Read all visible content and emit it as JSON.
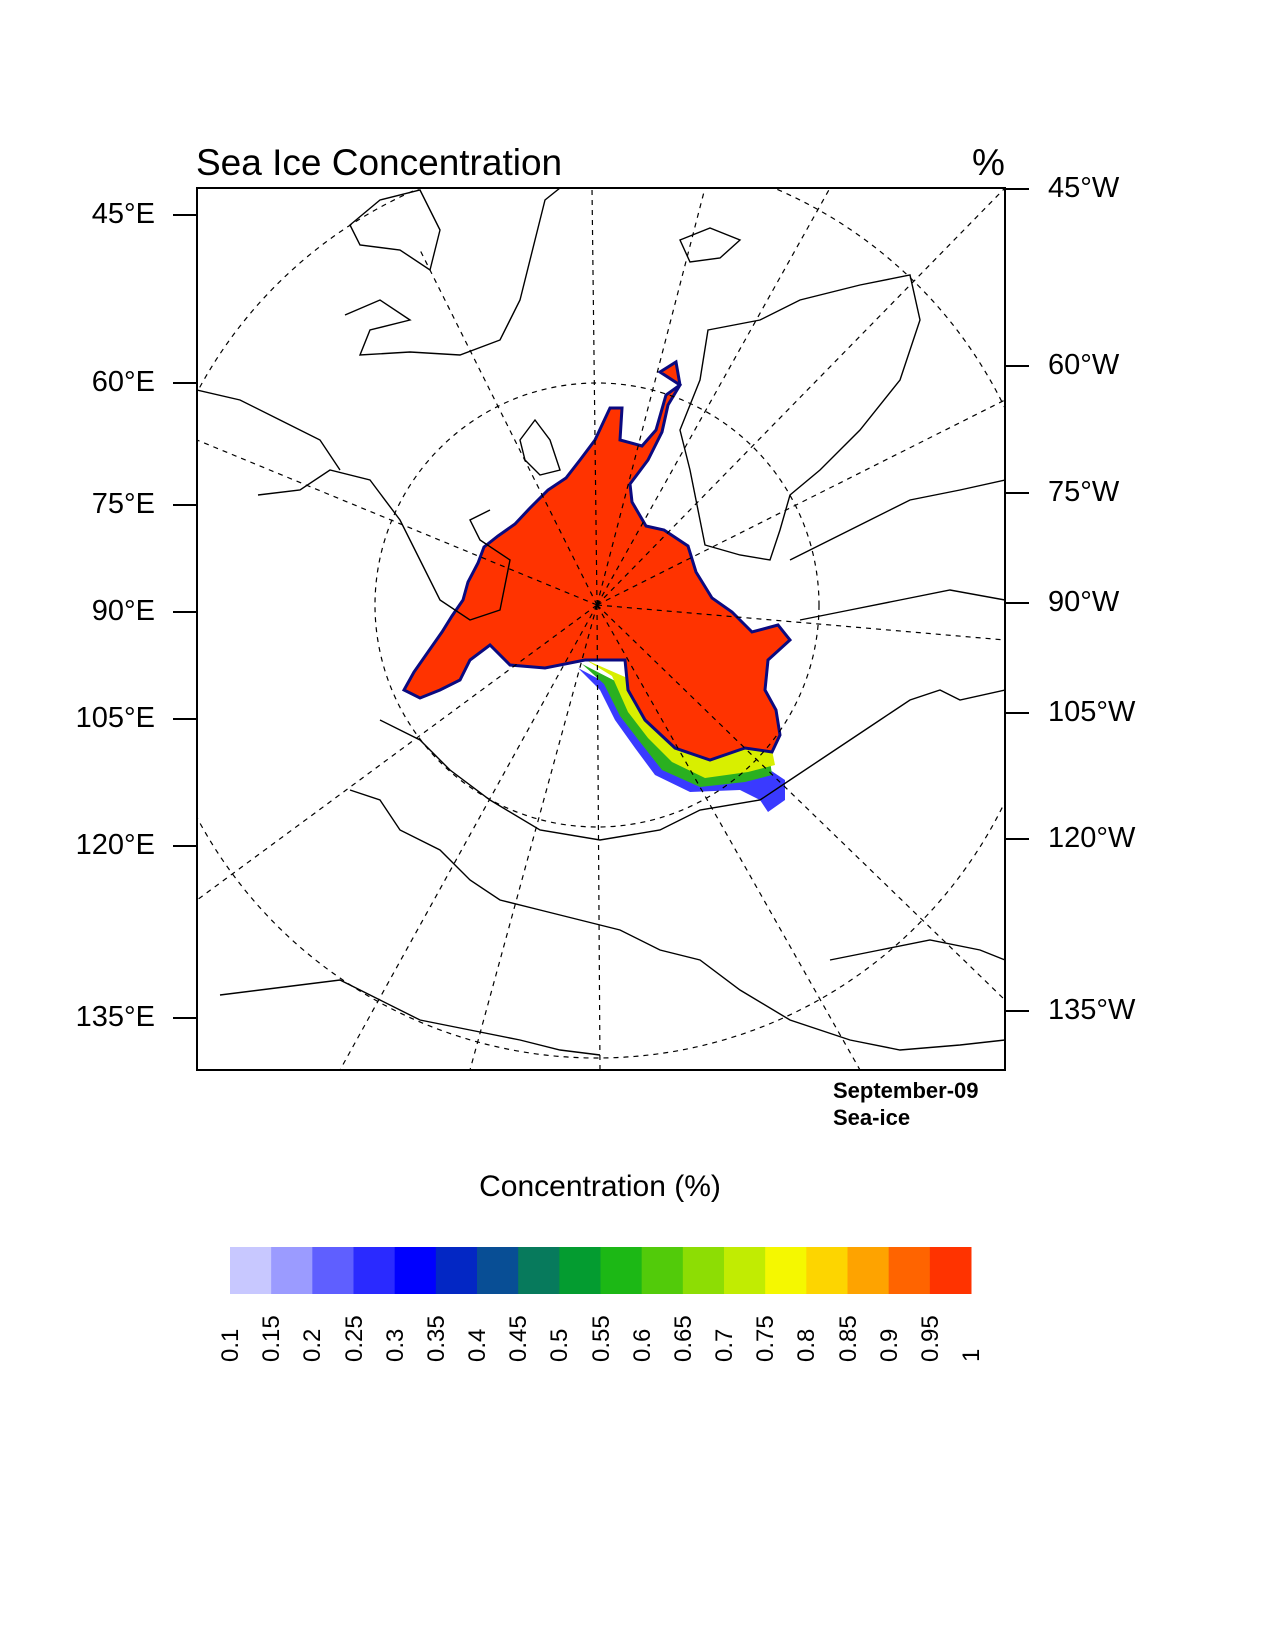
{
  "map": {
    "title": "Sea Ice Concentration",
    "units": "%",
    "left_labels": [
      "45°E",
      "60°E",
      "75°E",
      "90°E",
      "105°E",
      "120°E",
      "135°E"
    ],
    "right_labels": [
      "45°W",
      "60°W",
      "75°W",
      "90°W",
      "105°W",
      "120°W",
      "135°W"
    ],
    "footer": {
      "line1": "September-09",
      "line2": "Sea-ice"
    }
  },
  "colorbar": {
    "title": "Concentration (%)",
    "levels": [
      "0.1",
      "0.15",
      "0.2",
      "0.25",
      "0.3",
      "0.35",
      "0.4",
      "0.45",
      "0.5",
      "0.55",
      "0.6",
      "0.65",
      "0.7",
      "0.75",
      "0.8",
      "0.85",
      "0.9",
      "0.95",
      "1"
    ],
    "colors": [
      "#c8c8ff",
      "#9b9bff",
      "#5f5fff",
      "#2a2aff",
      "#0000ff",
      "#0327c4",
      "#084e95",
      "#077a5c",
      "#049c30",
      "#1cb815",
      "#52cb0a",
      "#8ddd04",
      "#c1ec02",
      "#f5f800",
      "#fdd500",
      "#fea300",
      "#ff6400",
      "#ff3300"
    ]
  }
}
